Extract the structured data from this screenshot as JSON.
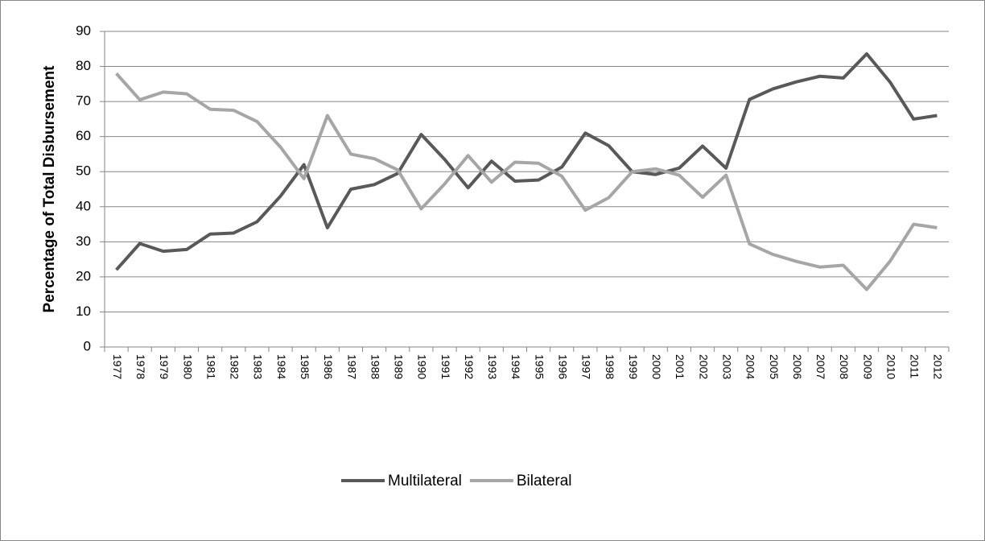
{
  "chart_data": {
    "type": "line",
    "y_label": "Percentage of Total Disbursement",
    "categories": [
      "1977",
      "1978",
      "1979",
      "1980",
      "1981",
      "1982",
      "1983",
      "1984",
      "1985",
      "1986",
      "1987",
      "1988",
      "1989",
      "1990",
      "1991",
      "1992",
      "1993",
      "1994",
      "1995",
      "1996",
      "1997",
      "1998",
      "1999",
      "2000",
      "2001",
      "2002",
      "2003",
      "2004",
      "2005",
      "2006",
      "2007",
      "2008",
      "2009",
      "2010",
      "2011",
      "2012"
    ],
    "series": [
      {
        "name": "Multilateral",
        "color": "#595959",
        "values": [
          22,
          29.5,
          27.3,
          27.8,
          32.2,
          32.5,
          35.7,
          43,
          52,
          34,
          45,
          46.3,
          49.5,
          60.6,
          53.5,
          45.4,
          53,
          47.3,
          47.6,
          51.3,
          61,
          57.4,
          50,
          49.2,
          51,
          57.3,
          51,
          70.6,
          73.6,
          75.6,
          77.2,
          76.7,
          83.6,
          75.5,
          65,
          66
        ]
      },
      {
        "name": "Bilateral",
        "color": "#a6a6a6",
        "values": [
          78,
          70.5,
          72.7,
          72.2,
          67.8,
          67.5,
          64.3,
          57,
          48,
          66,
          55,
          53.7,
          50.5,
          39.4,
          46.5,
          54.6,
          47,
          52.7,
          52.4,
          48.7,
          39,
          42.6,
          50,
          50.8,
          49,
          42.7,
          49,
          29.4,
          26.4,
          24.4,
          22.8,
          23.3,
          16.4,
          24.5,
          35,
          34
        ]
      }
    ],
    "ylim": [
      0,
      90
    ],
    "yticks": [
      0,
      10,
      20,
      30,
      40,
      50,
      60,
      70,
      80,
      90
    ],
    "grid": true,
    "legend": "bottom"
  }
}
